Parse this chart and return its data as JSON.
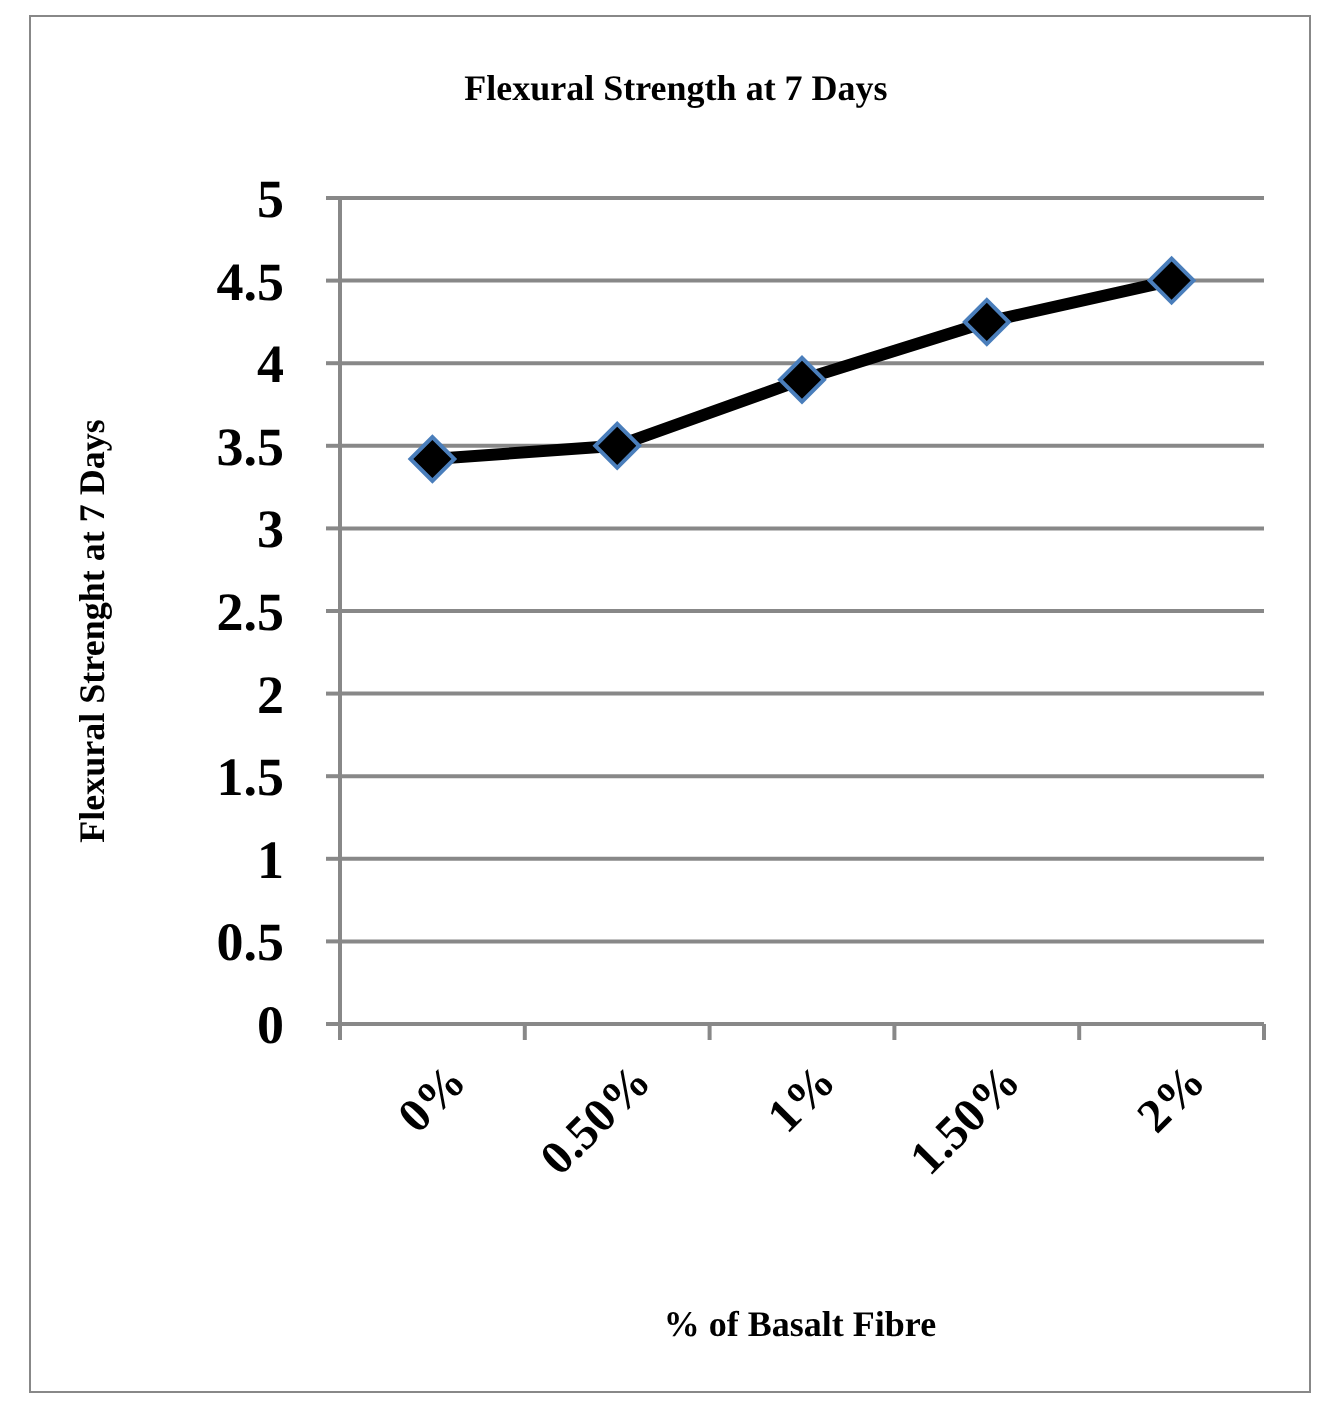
{
  "chart_data": {
    "type": "line",
    "title": "Flexural Strength at 7 Days",
    "xlabel": "% of Basalt Fibre",
    "ylabel": "Flexural Strenght at 7 Days",
    "categories": [
      "0%",
      "0.50%",
      "1%",
      "1.50%",
      "2%"
    ],
    "series": [
      {
        "color": "#000000",
        "values": [
          3.42,
          3.5,
          3.9,
          4.25,
          4.5
        ]
      }
    ],
    "ylim": [
      0,
      5
    ],
    "yticks": [
      0,
      0.5,
      1,
      1.5,
      2,
      2.5,
      3,
      3.5,
      4,
      4.5,
      5
    ],
    "grid": "y",
    "marker": "diamond",
    "line_style": "solid"
  }
}
